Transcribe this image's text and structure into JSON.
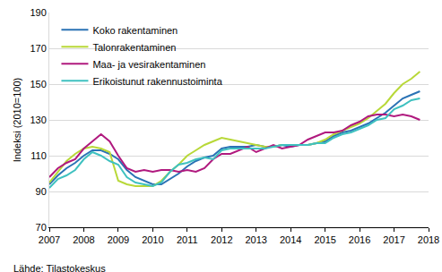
{
  "chart_data": {
    "type": "line",
    "y_label": "Indeksi (2010=100)",
    "source": "Lähde: Tilastokeskus",
    "x": [
      2007,
      2007.25,
      2007.5,
      2007.75,
      2008,
      2008.25,
      2008.5,
      2008.75,
      2009,
      2009.25,
      2009.5,
      2009.75,
      2010,
      2010.25,
      2010.5,
      2010.75,
      2011,
      2011.25,
      2011.5,
      2011.75,
      2012,
      2012.25,
      2012.5,
      2012.75,
      2013,
      2013.25,
      2013.5,
      2013.75,
      2014,
      2014.25,
      2014.5,
      2014.75,
      2015,
      2015.25,
      2015.5,
      2015.75,
      2016,
      2016.25,
      2016.5,
      2016.75,
      2017,
      2017.25,
      2017.5,
      2017.75
    ],
    "series": [
      {
        "name": "Koko rakentaminen",
        "color": "#2a72b5",
        "values": [
          94,
          99,
          103,
          106,
          110,
          113,
          113,
          111,
          108,
          102,
          98,
          96,
          94,
          94,
          97,
          100,
          104,
          107,
          109,
          110,
          114,
          115,
          115,
          115,
          116,
          115,
          115,
          116,
          115,
          116,
          116,
          117,
          118,
          121,
          123,
          124,
          126,
          128,
          131,
          134,
          138,
          142,
          144,
          146
        ]
      },
      {
        "name": "Talonrakentaminen",
        "color": "#b8d838",
        "values": [
          95,
          101,
          107,
          111,
          114,
          115,
          114,
          112,
          96,
          94,
          93,
          93,
          93,
          96,
          101,
          105,
          110,
          113,
          116,
          118,
          120,
          119,
          118,
          117,
          116,
          115,
          115,
          116,
          116,
          116,
          116,
          117,
          119,
          122,
          124,
          126,
          128,
          131,
          135,
          139,
          145,
          150,
          153,
          157
        ]
      },
      {
        "name": "Maa- ja vesirakentaminen",
        "color": "#b0197e",
        "values": [
          98,
          103,
          106,
          108,
          114,
          118,
          122,
          118,
          110,
          103,
          101,
          102,
          101,
          102,
          102,
          101,
          102,
          101,
          103,
          108,
          111,
          111,
          113,
          115,
          112,
          114,
          116,
          114,
          115,
          116,
          119,
          121,
          123,
          123,
          124,
          127,
          129,
          132,
          133,
          133,
          132,
          133,
          132,
          130
        ]
      },
      {
        "name": "Erikoistunut rakennustoiminta",
        "color": "#3fc1c0",
        "values": [
          92,
          97,
          99,
          102,
          108,
          112,
          110,
          107,
          105,
          98,
          95,
          94,
          93,
          95,
          101,
          105,
          106,
          108,
          109,
          108,
          113,
          114,
          114,
          114,
          114,
          114,
          115,
          116,
          116,
          116,
          116,
          117,
          117,
          120,
          122,
          123,
          125,
          127,
          130,
          131,
          136,
          138,
          141,
          142
        ]
      }
    ],
    "xlim": [
      2007,
      2018
    ],
    "xticks": [
      2007,
      2008,
      2009,
      2010,
      2011,
      2012,
      2013,
      2014,
      2015,
      2016,
      2017,
      2018
    ],
    "ylim": [
      70,
      190
    ],
    "yticks": [
      70,
      90,
      110,
      130,
      150,
      170,
      190
    ],
    "grid": true,
    "legend": "top-left"
  }
}
